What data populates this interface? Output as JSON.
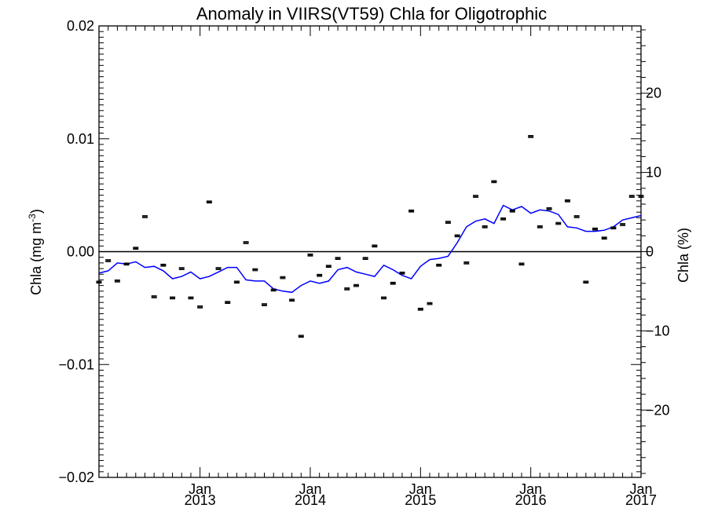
{
  "chart_data": {
    "type": "scatter",
    "title": "Anomaly in VIIRS(VT59) Chla for Oligotrophic",
    "ylabel_left": "Chla (mg m",
    "ylabel_left_sup": "-3",
    "ylabel_left_close": ")",
    "ylabel_right": "Chla (%)",
    "x_range": [
      "2012-02",
      "2017-01"
    ],
    "ylim_left": [
      -0.02,
      0.02
    ],
    "ylim_right": [
      -28.5,
      28.5
    ],
    "x_ticks": [
      {
        "date": "2013-01",
        "month": "Jan",
        "year": "2013"
      },
      {
        "date": "2014-01",
        "month": "Jan",
        "year": "2014"
      },
      {
        "date": "2015-01",
        "month": "Jan",
        "year": "2015"
      },
      {
        "date": "2016-01",
        "month": "Jan",
        "year": "2016"
      },
      {
        "date": "2017-01",
        "month": "Jan",
        "year": "2017"
      }
    ],
    "y_ticks_left": [
      {
        "value": 0.02,
        "label": "0.02"
      },
      {
        "value": 0.01,
        "label": "0.01"
      },
      {
        "value": 0.0,
        "label": "0.00"
      },
      {
        "value": -0.01,
        "label": "−0.01"
      },
      {
        "value": -0.02,
        "label": "−0.02"
      }
    ],
    "y_ticks_right": [
      {
        "value": 20,
        "label": "20"
      },
      {
        "value": 10,
        "label": "10"
      },
      {
        "value": 0,
        "label": "0"
      },
      {
        "value": -10,
        "label": "−10"
      },
      {
        "value": -20,
        "label": "−20"
      }
    ],
    "zero_line": 0,
    "series": [
      {
        "kind": "points",
        "color": "#000000",
        "x": [
          "2012-02",
          "2012-03",
          "2012-04",
          "2012-05",
          "2012-06",
          "2012-07",
          "2012-08",
          "2012-09",
          "2012-10",
          "2012-11",
          "2012-12",
          "2013-01",
          "2013-02",
          "2013-03",
          "2013-04",
          "2013-05",
          "2013-06",
          "2013-07",
          "2013-08",
          "2013-09",
          "2013-10",
          "2013-11",
          "2013-12",
          "2014-01",
          "2014-02",
          "2014-03",
          "2014-04",
          "2014-05",
          "2014-06",
          "2014-07",
          "2014-08",
          "2014-09",
          "2014-10",
          "2014-11",
          "2014-12",
          "2015-01",
          "2015-02",
          "2015-03",
          "2015-04",
          "2015-05",
          "2015-06",
          "2015-07",
          "2015-08",
          "2015-09",
          "2015-10",
          "2015-11",
          "2015-12",
          "2016-01",
          "2016-02",
          "2016-03",
          "2016-04",
          "2016-05",
          "2016-06",
          "2016-07",
          "2016-08",
          "2016-09",
          "2016-10",
          "2016-11",
          "2016-12",
          "2017-01"
        ],
        "y": [
          -0.0027,
          -0.0008,
          -0.0026,
          -0.0011,
          0.0003,
          0.0031,
          -0.004,
          -0.0012,
          -0.0041,
          -0.0015,
          -0.0041,
          -0.0049,
          0.0044,
          -0.0015,
          -0.0045,
          -0.0027,
          0.0008,
          -0.0016,
          -0.0047,
          -0.0034,
          -0.0023,
          -0.0043,
          -0.0075,
          -0.0003,
          -0.0021,
          -0.0013,
          -0.0006,
          -0.0033,
          -0.003,
          -0.0006,
          0.0005,
          -0.0041,
          -0.0028,
          -0.0019,
          0.0036,
          -0.0051,
          -0.0046,
          -0.0012,
          0.0026,
          0.0014,
          -0.001,
          0.0049,
          0.0022,
          0.0062,
          0.0029,
          0.0036,
          -0.0011,
          0.0102,
          0.0022,
          0.0038,
          0.0025,
          0.0045,
          0.0031,
          -0.0027,
          0.002,
          0.0012,
          0.0021,
          0.0024,
          0.0049,
          0.0049
        ]
      },
      {
        "kind": "line",
        "color": "#0000ff",
        "x": [
          "2012-02",
          "2012-03",
          "2012-04",
          "2012-05",
          "2012-06",
          "2012-07",
          "2012-08",
          "2012-09",
          "2012-10",
          "2012-11",
          "2012-12",
          "2013-01",
          "2013-02",
          "2013-03",
          "2013-04",
          "2013-05",
          "2013-06",
          "2013-07",
          "2013-08",
          "2013-09",
          "2013-10",
          "2013-11",
          "2013-12",
          "2014-01",
          "2014-02",
          "2014-03",
          "2014-04",
          "2014-05",
          "2014-06",
          "2014-07",
          "2014-08",
          "2014-09",
          "2014-10",
          "2014-11",
          "2014-12",
          "2015-01",
          "2015-02",
          "2015-03",
          "2015-04",
          "2015-05",
          "2015-06",
          "2015-07",
          "2015-08",
          "2015-09",
          "2015-10",
          "2015-11",
          "2015-12",
          "2016-01",
          "2016-02",
          "2016-03",
          "2016-04",
          "2016-05",
          "2016-06",
          "2016-07",
          "2016-08",
          "2016-09",
          "2016-10",
          "2016-11",
          "2016-12",
          "2017-01"
        ],
        "y": [
          -0.0019,
          -0.0017,
          -0.001,
          -0.0011,
          -0.0009,
          -0.0014,
          -0.0013,
          -0.0017,
          -0.0024,
          -0.0022,
          -0.0018,
          -0.0024,
          -0.0022,
          -0.0018,
          -0.0014,
          -0.0014,
          -0.0025,
          -0.0026,
          -0.0026,
          -0.0033,
          -0.0035,
          -0.0036,
          -0.003,
          -0.0026,
          -0.0028,
          -0.0026,
          -0.0016,
          -0.0014,
          -0.0018,
          -0.002,
          -0.0022,
          -0.0012,
          -0.0016,
          -0.0021,
          -0.0024,
          -0.0013,
          -0.0007,
          -0.0006,
          -0.0004,
          0.0008,
          0.0022,
          0.0027,
          0.0029,
          0.0025,
          0.0041,
          0.0037,
          0.004,
          0.0034,
          0.0037,
          0.0036,
          0.0033,
          0.0022,
          0.0021,
          0.0018,
          0.0018,
          0.0019,
          0.0022,
          0.0028,
          0.003,
          0.0032
        ]
      }
    ]
  }
}
